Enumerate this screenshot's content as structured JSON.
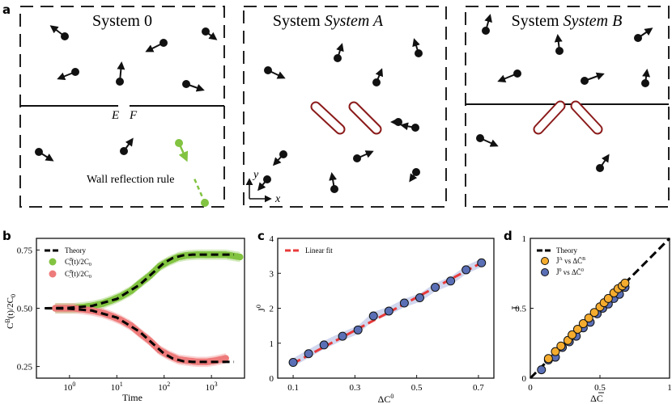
{
  "figure": {
    "panel_letters": {
      "a": "a",
      "b": "b",
      "c": "c",
      "d": "d"
    },
    "panel_a": {
      "system0_title": "System 0",
      "systemA_title": "System A",
      "systemB_title": "System B",
      "gate_E": "E",
      "gate_F": "F",
      "wall_rule_label": "Wall reflection rule",
      "axis_y": "y",
      "axis_x": "x"
    },
    "colors": {
      "green": "#82c341",
      "red": "#ee7b7b",
      "blue": "#5a6fb5",
      "orange": "#f5ac2e",
      "gate_red": "#8b1a1a",
      "theory": "#000000",
      "fit": "#e8393a"
    }
  },
  "chart_data": [
    {
      "panel": "b",
      "type": "scatter",
      "xscale": "log",
      "xlim": [
        0.2,
        5000
      ],
      "ylim": [
        0.2,
        0.8
      ],
      "xlabel": "Time",
      "ylabel": "C^B(t)/2C_0",
      "xticks": [
        "10^0",
        "10^1",
        "10^2",
        "10^3"
      ],
      "yticks": [
        "0.25",
        "0.50",
        "0.75"
      ],
      "legend": [
        "Theory",
        "C^B_+(t)/2C_0",
        "C^B_-(t)/2C_0"
      ],
      "legend_position": "top-left",
      "theory": {
        "x": [
          0.3,
          1,
          3,
          10,
          30,
          60,
          100,
          150,
          250,
          400,
          700,
          1000,
          2000,
          3000
        ],
        "upper": [
          0.5,
          0.502,
          0.51,
          0.54,
          0.6,
          0.655,
          0.695,
          0.715,
          0.727,
          0.73,
          0.73,
          0.73,
          0.73,
          0.73
        ],
        "lower": [
          0.5,
          0.498,
          0.49,
          0.46,
          0.4,
          0.345,
          0.305,
          0.285,
          0.273,
          0.27,
          0.27,
          0.27,
          0.27,
          0.27
        ]
      },
      "series": [
        {
          "name": "C^B_+(t)/2C_0",
          "x": [
            0.5,
            0.8,
            1.2,
            2,
            3,
            5,
            8,
            12,
            20,
            30,
            50,
            80,
            120,
            200,
            300,
            500,
            800,
            1200,
            2000,
            4000
          ],
          "values": [
            0.5,
            0.5,
            0.5,
            0.505,
            0.51,
            0.52,
            0.535,
            0.55,
            0.575,
            0.605,
            0.64,
            0.68,
            0.7,
            0.72,
            0.727,
            0.73,
            0.73,
            0.73,
            0.73,
            0.72
          ]
        },
        {
          "name": "C^B_-(t)/2C_0",
          "x": [
            0.5,
            0.8,
            1.2,
            2,
            3,
            5,
            8,
            12,
            20,
            30,
            50,
            80,
            120,
            200,
            300,
            500,
            800,
            1200,
            2000
          ],
          "values": [
            0.5,
            0.5,
            0.5,
            0.495,
            0.49,
            0.48,
            0.465,
            0.45,
            0.425,
            0.395,
            0.36,
            0.32,
            0.3,
            0.28,
            0.275,
            0.27,
            0.27,
            0.275,
            0.285
          ]
        }
      ]
    },
    {
      "panel": "c",
      "type": "scatter",
      "xlim": [
        0.05,
        0.75
      ],
      "ylim": [
        0,
        4
      ],
      "xlabel": "ΔC^0",
      "ylabel": "J^0",
      "xticks": [
        "0.1",
        "0.3",
        "0.5",
        "0.7"
      ],
      "yticks": [
        "0",
        "1",
        "2",
        "3",
        "4"
      ],
      "legend": [
        "Linear fit"
      ],
      "legend_position": "top-left",
      "fit": {
        "x": [
          0.1,
          0.72
        ],
        "y": [
          0.42,
          3.35
        ]
      },
      "series": [
        {
          "name": "J^0",
          "x": [
            0.1,
            0.15,
            0.2,
            0.26,
            0.31,
            0.36,
            0.41,
            0.46,
            0.51,
            0.56,
            0.61,
            0.66,
            0.71
          ],
          "values": [
            0.45,
            0.7,
            0.95,
            1.2,
            1.38,
            1.78,
            1.92,
            2.15,
            2.3,
            2.6,
            2.78,
            3.1,
            3.3
          ]
        }
      ]
    },
    {
      "panel": "d",
      "type": "scatter",
      "xlim": [
        0,
        1
      ],
      "ylim": [
        0,
        1
      ],
      "xlabel": "ΔC̄",
      "ylabel": "J̄",
      "xticks": [
        "0",
        "0.5",
        "1"
      ],
      "yticks": [
        "0",
        "0.5",
        "1"
      ],
      "legend": [
        "Theory",
        "J̄^A vs ΔC̄^B",
        "J̄^0 vs ΔC̄^0"
      ],
      "legend_position": "top-left",
      "theory": {
        "x": [
          0,
          1
        ],
        "y": [
          0,
          1
        ]
      },
      "series": [
        {
          "name": "J̄^A vs ΔC̄^B",
          "x": [
            0.13,
            0.18,
            0.22,
            0.27,
            0.3,
            0.34,
            0.38,
            0.42,
            0.46,
            0.5,
            0.53,
            0.56,
            0.6,
            0.63,
            0.66,
            0.68
          ],
          "values": [
            0.14,
            0.19,
            0.23,
            0.27,
            0.31,
            0.35,
            0.39,
            0.43,
            0.47,
            0.51,
            0.54,
            0.57,
            0.61,
            0.64,
            0.66,
            0.68
          ]
        },
        {
          "name": "J̄^0 vs ΔC̄^0",
          "x": [
            0.08,
            0.13,
            0.18,
            0.23,
            0.28,
            0.33,
            0.38,
            0.43,
            0.48,
            0.52,
            0.56,
            0.6,
            0.64,
            0.68
          ],
          "values": [
            0.06,
            0.13,
            0.15,
            0.22,
            0.26,
            0.3,
            0.36,
            0.4,
            0.46,
            0.5,
            0.53,
            0.57,
            0.6,
            0.65
          ]
        }
      ]
    }
  ]
}
